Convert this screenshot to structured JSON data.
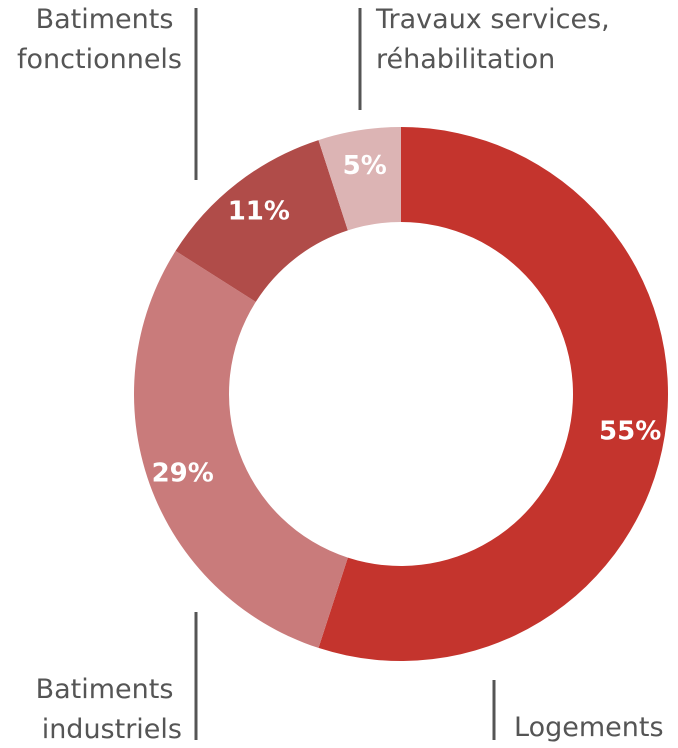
{
  "chart_data": {
    "type": "pie",
    "donut": true,
    "categories": [
      "Logements",
      "Batiments industriels",
      "Batiments fonctionnels",
      "Travaux services, réhabilitation"
    ],
    "values": [
      55,
      29,
      11,
      5
    ],
    "value_labels": [
      "55%",
      "29%",
      "11%",
      "5%"
    ],
    "colors": [
      "#c4342d",
      "#c97b7b",
      "#b04c49",
      "#dcb4b4"
    ],
    "label_lines": {
      "logements": [
        "Logements"
      ],
      "industriels": [
        "Batiments",
        "industriels"
      ],
      "fonctionnels": [
        "Batiments",
        "fonctionnels"
      ],
      "travaux": [
        "Travaux services,",
        "réhabilitation"
      ]
    },
    "legend": "none",
    "grid": false
  }
}
